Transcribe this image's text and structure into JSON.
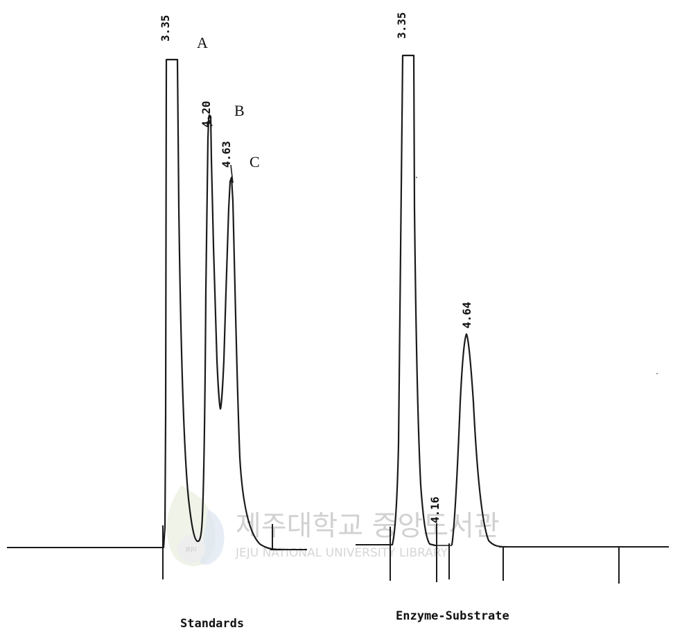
{
  "chart_data": [
    {
      "type": "line",
      "title": "Standards",
      "xlabel": "",
      "ylabel": "",
      "peaks": [
        {
          "retention_time": "3.35",
          "letter": "A",
          "relative_height": 1.0
        },
        {
          "retention_time": "4.20",
          "letter": "B",
          "relative_height": 0.78
        },
        {
          "retention_time": "4.63",
          "letter": "C",
          "relative_height": 0.71
        }
      ]
    },
    {
      "type": "line",
      "title": "Enzyme-Substrate",
      "xlabel": "",
      "ylabel": "",
      "peaks": [
        {
          "retention_time": "3.35",
          "letter": "",
          "relative_height": 1.0
        },
        {
          "retention_time": "4.16",
          "letter": "",
          "relative_height": 0.0
        },
        {
          "retention_time": "4.64",
          "letter": "",
          "relative_height": 0.44
        }
      ]
    }
  ],
  "labels": {
    "left_panel": "Standards",
    "right_panel": "Enzyme-Substrate"
  },
  "watermark": {
    "korean": "제주대학교 중앙도서관",
    "english": "JEJU NATIONAL UNIVERSITY LIBRARY",
    "seal_text": "JEJU"
  }
}
